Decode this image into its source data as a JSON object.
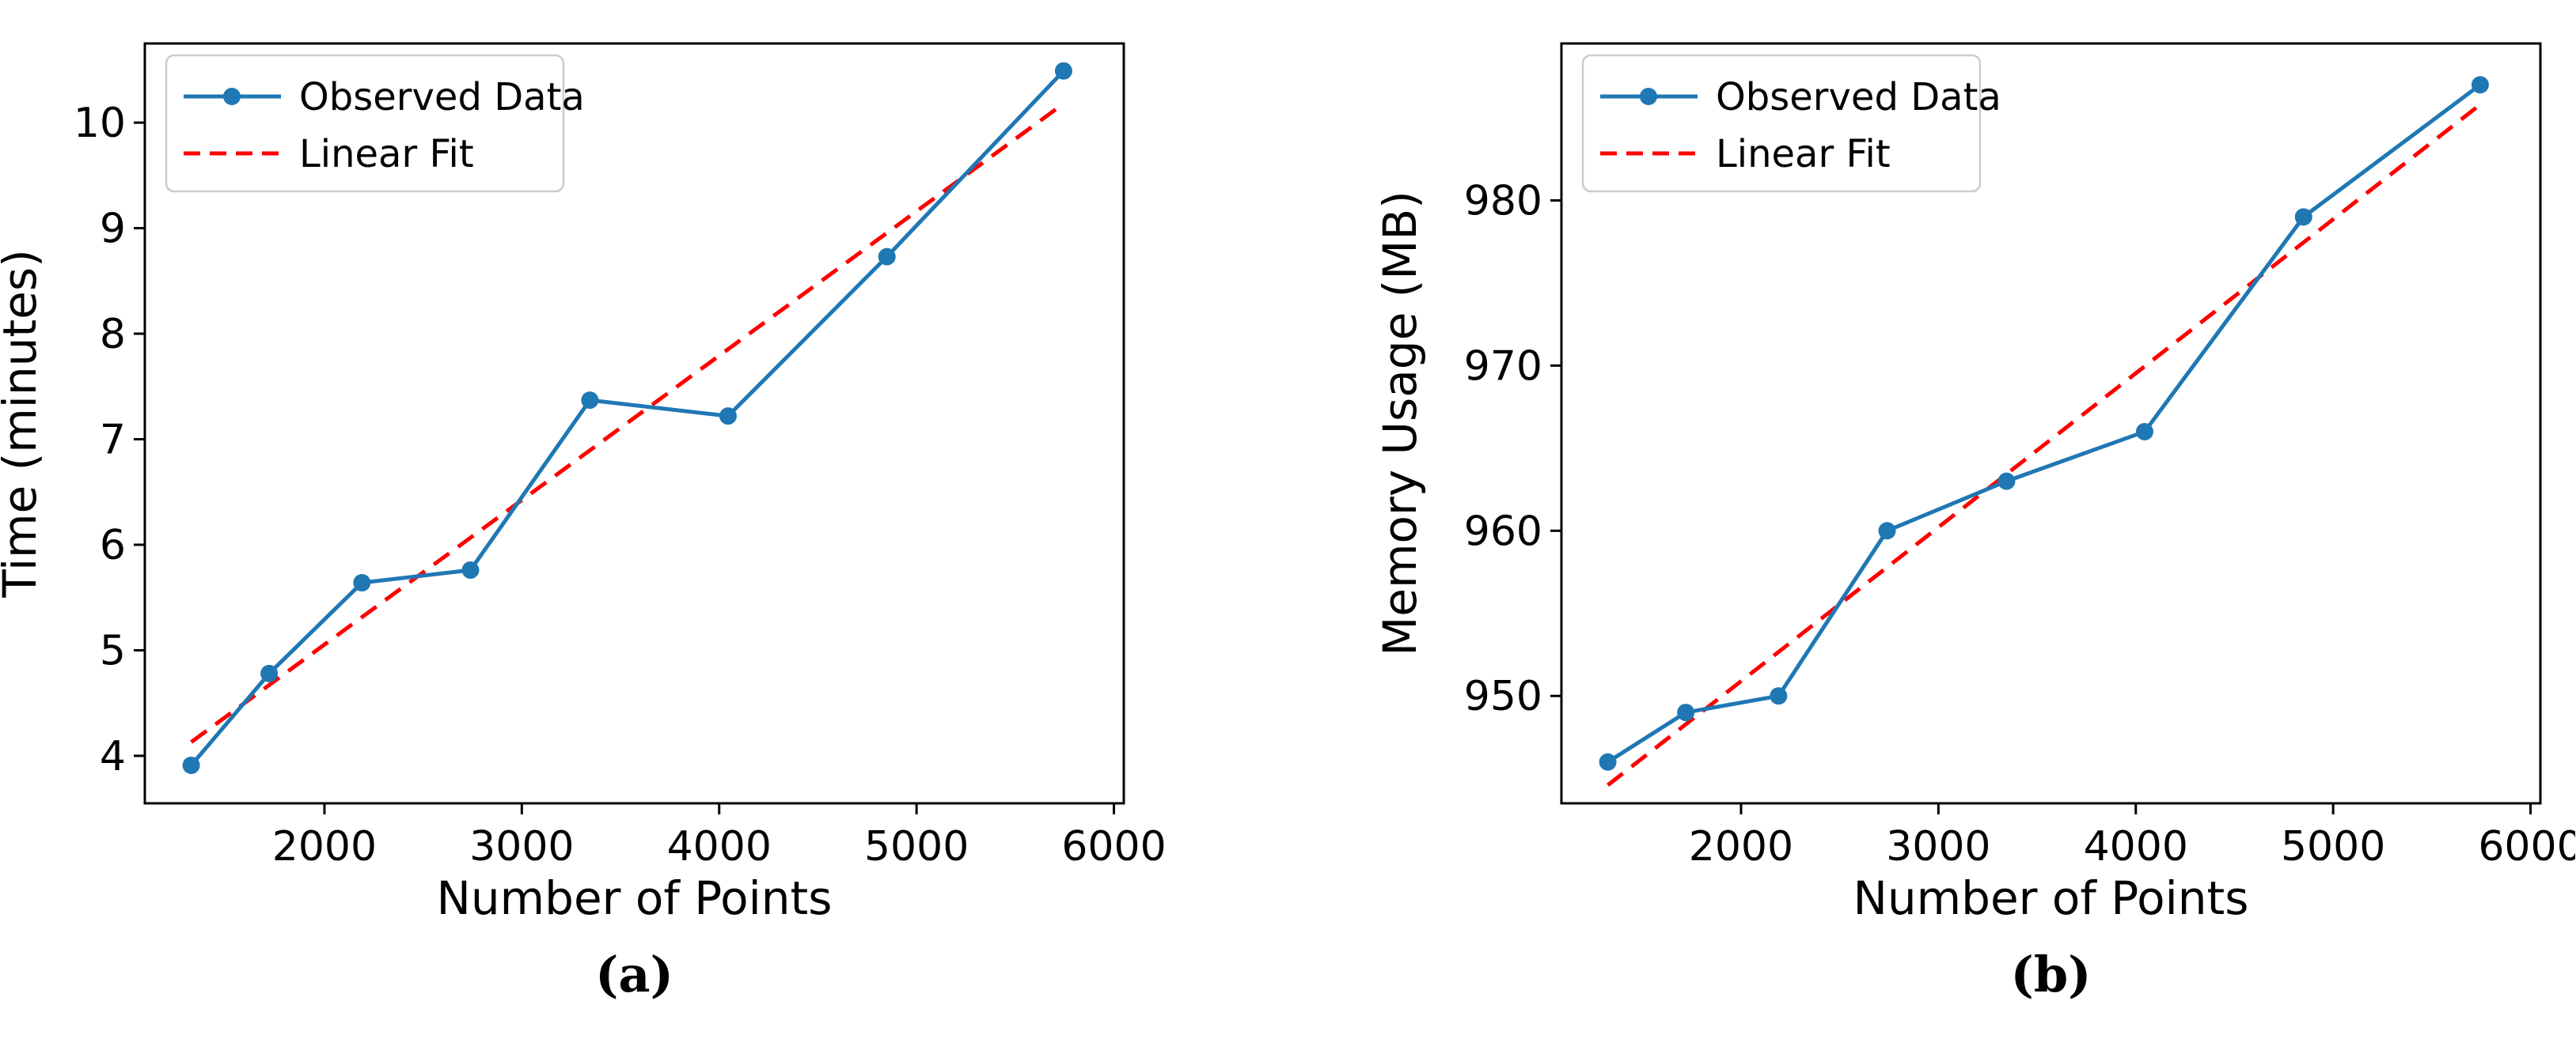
{
  "figure": {
    "background": "#ffffff"
  },
  "colors": {
    "observed": "#1f77b4",
    "fit": "#ff0000",
    "axis": "#000000",
    "text": "#000000",
    "legend_border": "#cccccc",
    "legend_bg": "#ffffff"
  },
  "legend": {
    "observed_label": "Observed Data",
    "fit_label": "Linear Fit"
  },
  "chart_data": [
    {
      "id": "a",
      "type": "line",
      "caption": "(a)",
      "xlabel": "Number of Points",
      "ylabel": "Time (minutes)",
      "x": [
        1325,
        1720,
        2190,
        2740,
        3345,
        4045,
        4850,
        5745
      ],
      "series": [
        {
          "name": "Observed Data",
          "style": "solid-marker",
          "y": [
            3.91,
            4.78,
            5.64,
            5.76,
            7.37,
            7.22,
            8.73,
            10.49
          ]
        },
        {
          "name": "Linear Fit",
          "style": "dashed",
          "fit_x": [
            1325,
            5745
          ],
          "fit_y": [
            4.13,
            10.18
          ]
        }
      ],
      "xticks": [
        2000,
        3000,
        4000,
        5000,
        6000
      ],
      "yticks": [
        4,
        5,
        6,
        7,
        8,
        9,
        10
      ],
      "xlim": [
        1090,
        6050
      ],
      "ylim": [
        3.55,
        10.75
      ],
      "grid": false,
      "legend_position": "upper-left"
    },
    {
      "id": "b",
      "type": "line",
      "caption": "(b)",
      "xlabel": "Number of Points",
      "ylabel": "Memory Usage (MB)",
      "x": [
        1325,
        1720,
        2190,
        2740,
        3345,
        4045,
        4850,
        5745
      ],
      "series": [
        {
          "name": "Observed Data",
          "style": "solid-marker",
          "y": [
            946,
            949,
            950,
            960,
            963,
            966,
            979,
            987
          ]
        },
        {
          "name": "Linear Fit",
          "style": "dashed",
          "fit_x": [
            1325,
            5745
          ],
          "fit_y": [
            944.6,
            985.8
          ]
        }
      ],
      "xticks": [
        2000,
        3000,
        4000,
        5000,
        6000
      ],
      "yticks": [
        950,
        960,
        970,
        980
      ],
      "xlim": [
        1090,
        6050
      ],
      "ylim": [
        943.5,
        989.5
      ],
      "grid": false,
      "legend_position": "upper-left"
    }
  ]
}
